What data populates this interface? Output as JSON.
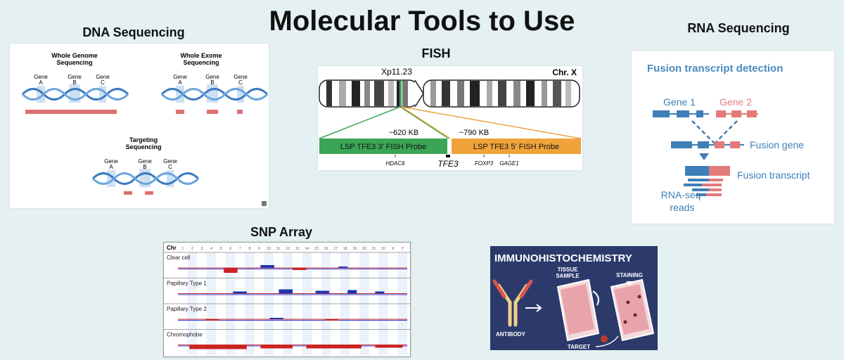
{
  "page": {
    "title": "Molecular Tools to Use"
  },
  "dna": {
    "title": "DNA Sequencing",
    "wgs_label_1": "Whole Genome",
    "wgs_label_2": "Sequencing",
    "wes_label_1": "Whole Exome",
    "wes_label_2": "Sequencing",
    "tgt_label_1": "Targeting",
    "tgt_label_2": "Sequencing",
    "gene_word": "Gene",
    "gene_letters": [
      "A",
      "B",
      "C"
    ]
  },
  "fish": {
    "title": "FISH",
    "band": "Xp11.23",
    "chromosome": "Chr. X",
    "size_left": "~620 KB",
    "size_right": "~790 KB",
    "probe_left": "LSP TFE3 3' FISH Probe",
    "probe_right": "LSP TFE3 5' FISH Probe",
    "gene_hdac6": "HDAC6",
    "gene_tfe3": "TFE3",
    "gene_foxp3": "FOXP3",
    "gene_gage1": "GAGE1",
    "colors": {
      "left_probe": "#3aa655",
      "right_probe": "#efa33a"
    }
  },
  "rna": {
    "title": "RNA Sequencing",
    "heading": "Fusion transcript detection",
    "gene1": "Gene 1",
    "gene2": "Gene 2",
    "fusion_gene": "Fusion gene",
    "fusion_transcript": "Fusion transcript",
    "reads_1": "RNA-seq",
    "reads_2": "reads",
    "colors": {
      "gene1": "#3d7fb8",
      "gene2": "#e57a7a"
    }
  },
  "snp": {
    "title": "SNP Array",
    "chr_label": "Chr",
    "chromosomes": [
      "1",
      "2",
      "3",
      "4",
      "5",
      "6",
      "7",
      "8",
      "9",
      "10",
      "11",
      "12",
      "13",
      "14",
      "15",
      "16",
      "17",
      "18",
      "19",
      "20",
      "21",
      "22",
      "X",
      "Y"
    ],
    "tracks": [
      "Clear cell",
      "Papillary Type 1",
      "Papillary Type 2",
      "Chromophobe"
    ]
  },
  "ihc": {
    "title": "IMMUNOHISTOCHEMISTRY",
    "tissue_1": "TISSUE",
    "tissue_2": "SAMPLE",
    "staining": "STAINING",
    "antibody": "ANTIBODY",
    "target": "TARGET",
    "colors": {
      "bg": "#2b3a6b"
    }
  }
}
